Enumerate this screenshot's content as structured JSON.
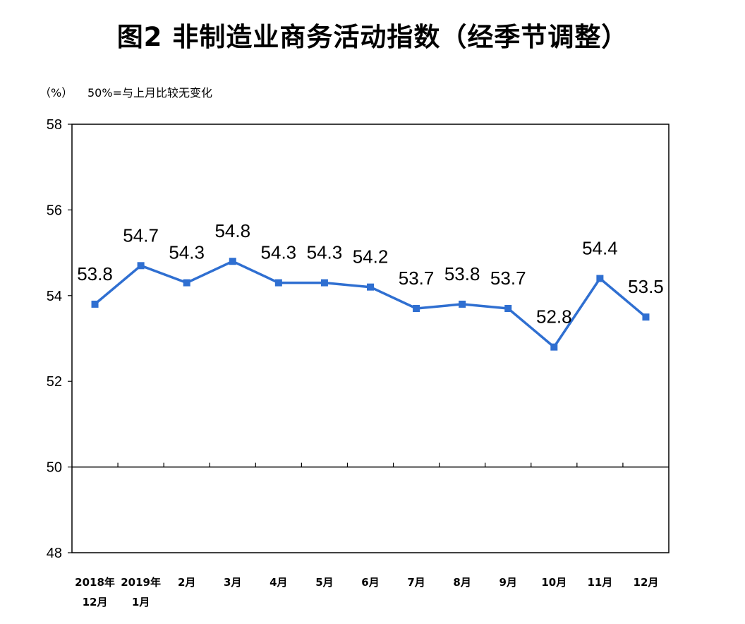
{
  "title": "图2  非制造业商务活动指数（经季节调整）",
  "unit_label": "（%）",
  "note": "50%=与上月比较无变化",
  "colors": {
    "series": "#2f6fd1",
    "axis": "#000000"
  },
  "chart_data": {
    "type": "line",
    "title": "图2  非制造业商务活动指数（经季节调整）",
    "ylabel": "（%）",
    "xlabel": "",
    "ylim": [
      48,
      58
    ],
    "yticks": [
      48,
      50,
      52,
      54,
      56,
      58
    ],
    "reference_line": 50,
    "grid": false,
    "categories": [
      [
        "2018年",
        "12月"
      ],
      [
        "2019年",
        "1月"
      ],
      [
        "2月"
      ],
      [
        "3月"
      ],
      [
        "4月"
      ],
      [
        "5月"
      ],
      [
        "6月"
      ],
      [
        "7月"
      ],
      [
        "8月"
      ],
      [
        "9月"
      ],
      [
        "10月"
      ],
      [
        "11月"
      ],
      [
        "12月"
      ]
    ],
    "series": [
      {
        "values": [
          53.8,
          54.7,
          54.3,
          54.8,
          54.3,
          54.3,
          54.2,
          53.7,
          53.8,
          53.7,
          52.8,
          54.4,
          53.5
        ],
        "labels": [
          "53.8",
          "54.7",
          "54.3",
          "54.8",
          "54.3",
          "54.3",
          "54.2",
          "53.7",
          "53.8",
          "53.7",
          "52.8",
          "54.4",
          "53.5"
        ]
      }
    ]
  }
}
